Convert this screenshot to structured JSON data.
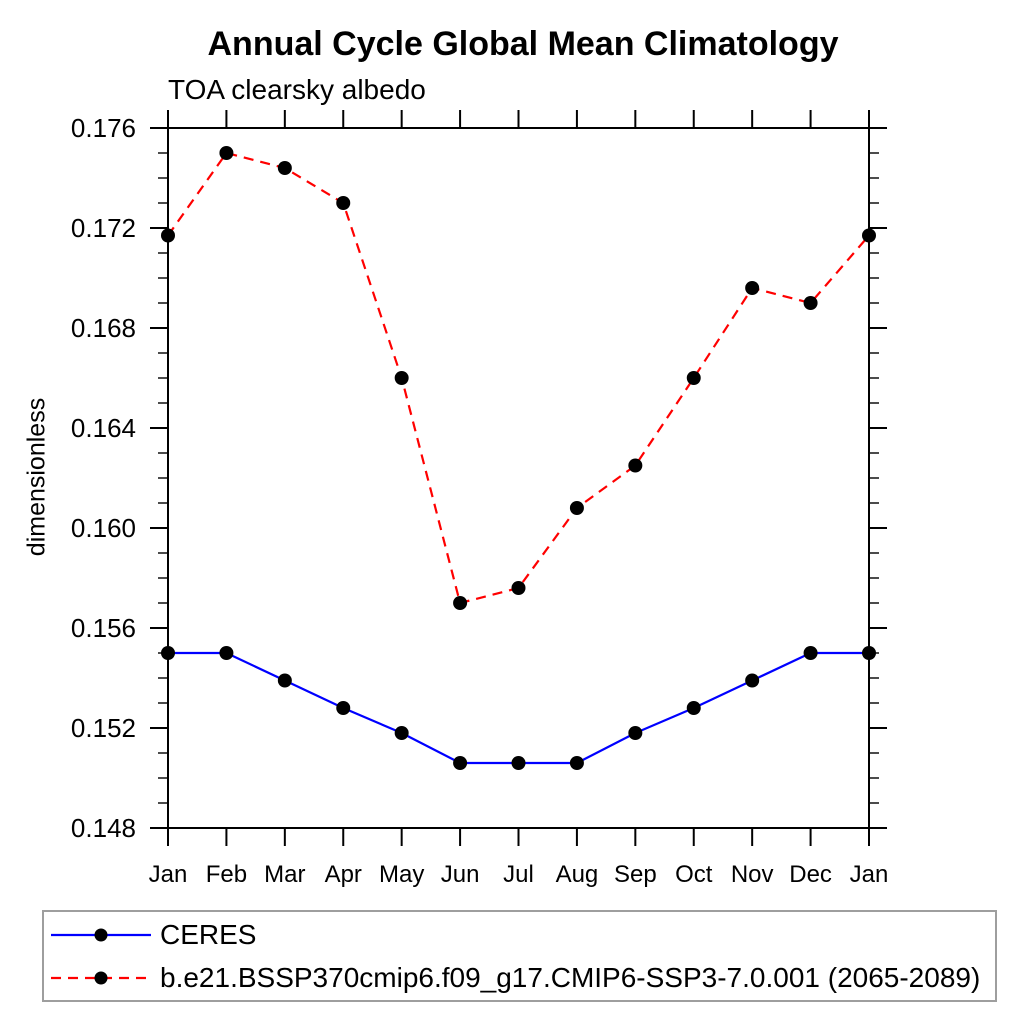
{
  "chart_data": {
    "type": "line",
    "title": "Annual Cycle Global Mean Climatology",
    "subtitle": "TOA clearsky albedo",
    "ylabel": "dimensionless",
    "xlabel": "",
    "x_tick_labels": [
      "Jan",
      "Feb",
      "Mar",
      "Apr",
      "May",
      "Jun",
      "Jul",
      "Aug",
      "Sep",
      "Oct",
      "Nov",
      "Dec",
      "Jan"
    ],
    "ylim": [
      0.148,
      0.176
    ],
    "y_major_step": 0.004,
    "y_minor_step": 0.001,
    "y_tick_decimals": 3,
    "grid": false,
    "legend_position": "bottom-left",
    "axis_color": "#000000",
    "marker_color": "#000000",
    "series": [
      {
        "name": "CERES",
        "color": "#0000ff",
        "line_style": "solid",
        "marker": "filled-circle",
        "values": [
          0.155,
          0.155,
          0.1539,
          0.1528,
          0.1518,
          0.1506,
          0.1506,
          0.1506,
          0.1518,
          0.1528,
          0.1539,
          0.155,
          0.155
        ]
      },
      {
        "name": "b.e21.BSSP370cmip6.f09_g17.CMIP6-SSP3-7.0.001 (2065-2089)",
        "color": "#ff0000",
        "line_style": "dashed",
        "marker": "filled-circle",
        "values": [
          0.1717,
          0.175,
          0.1744,
          0.173,
          0.166,
          0.157,
          0.1576,
          0.1608,
          0.1625,
          0.166,
          0.1696,
          0.169,
          0.1717
        ]
      }
    ]
  }
}
